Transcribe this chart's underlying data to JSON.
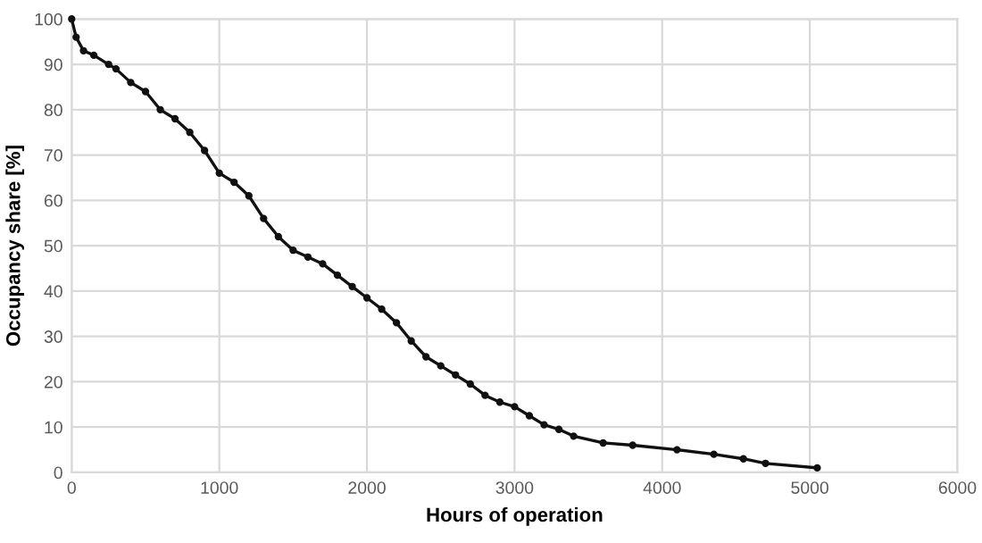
{
  "chart_data": {
    "type": "line",
    "xlabel": "Hours of operation",
    "ylabel": "Occupancy share [%]",
    "xlim": [
      0,
      6000
    ],
    "xticks": [
      0,
      1000,
      2000,
      3000,
      4000,
      5000,
      6000
    ],
    "ylim": [
      0,
      100
    ],
    "yticks": [
      0,
      10,
      20,
      30,
      40,
      50,
      60,
      70,
      80,
      90,
      100
    ],
    "grid": true,
    "marker": "circle",
    "line_style": "solid",
    "series": [
      {
        "color": "#111111",
        "x": [
          0,
          30,
          80,
          150,
          250,
          300,
          400,
          500,
          600,
          700,
          800,
          900,
          1000,
          1100,
          1200,
          1300,
          1400,
          1500,
          1600,
          1700,
          1800,
          1900,
          2000,
          2100,
          2200,
          2300,
          2400,
          2500,
          2600,
          2700,
          2800,
          2900,
          3000,
          3100,
          3200,
          3300,
          3400,
          3600,
          3800,
          4100,
          4350,
          4550,
          4700,
          5050
        ],
        "values": [
          100,
          96,
          93,
          92,
          90,
          89,
          86,
          84,
          80,
          78,
          75,
          71,
          66,
          64,
          61,
          56,
          52,
          49,
          47.5,
          46,
          43.5,
          41,
          38.5,
          36,
          33,
          29,
          25.5,
          23.5,
          21.5,
          19.5,
          17,
          15.5,
          14.5,
          12.5,
          10.5,
          9.5,
          8,
          6.5,
          6,
          5,
          4,
          3,
          2,
          1
        ]
      }
    ]
  }
}
